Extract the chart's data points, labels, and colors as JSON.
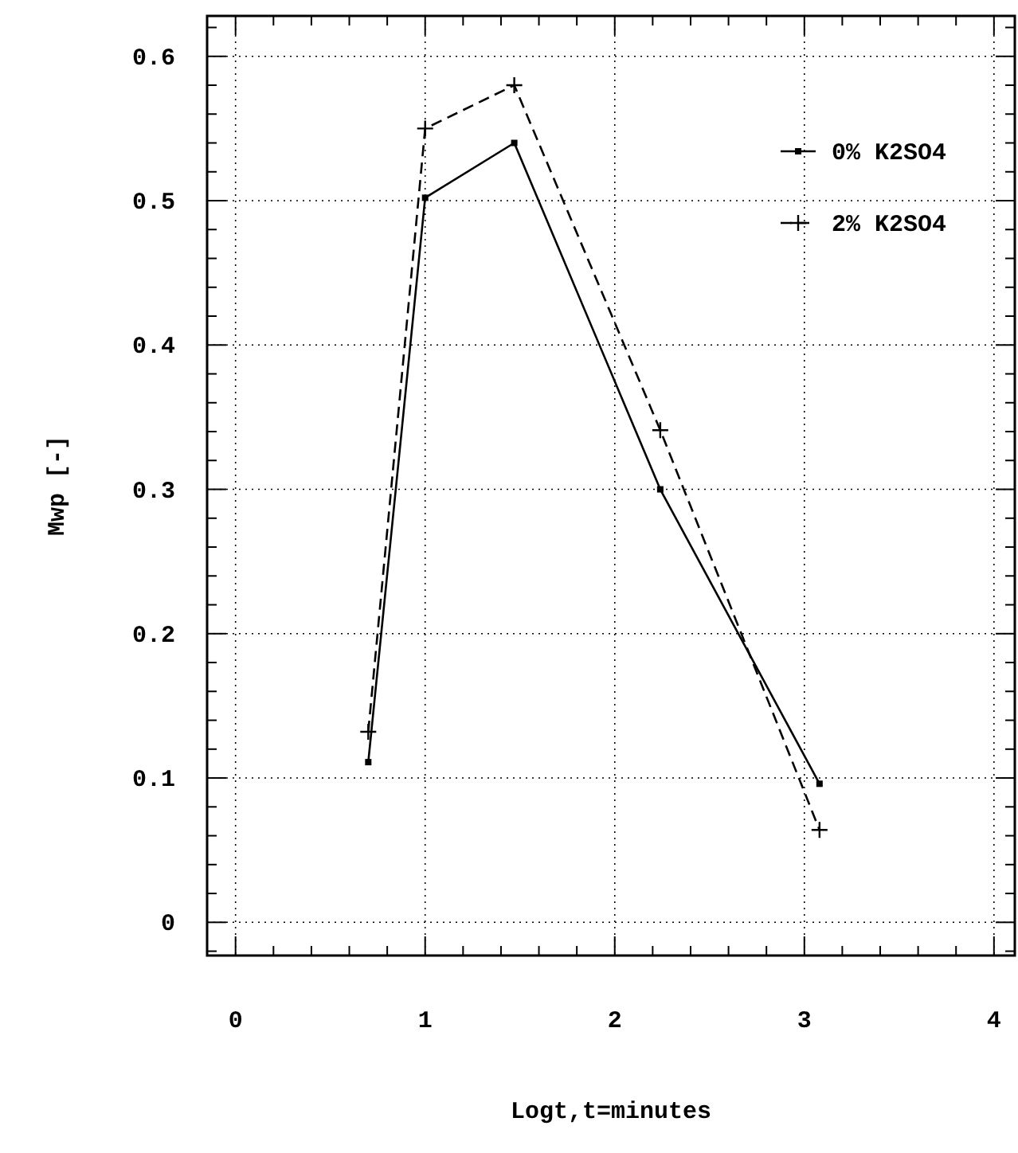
{
  "chart_data": {
    "type": "line",
    "xlabel": "Logt,t=minutes",
    "ylabel": "Mwp [-]",
    "xlim": [
      -0.15,
      4.11
    ],
    "xticks": [
      0,
      1,
      2,
      3,
      4
    ],
    "ylim": [
      -0.023,
      0.628
    ],
    "yticks": [
      0,
      0.1,
      0.2,
      0.3,
      0.4,
      0.5,
      0.6
    ],
    "grid": true,
    "legend": "top right",
    "series": [
      {
        "name": "0% K2SO4",
        "color": "#000000",
        "x": [
          0.7,
          1.0,
          1.47,
          2.24,
          3.08
        ],
        "values": [
          0.111,
          0.502,
          0.54,
          0.3,
          0.096
        ],
        "marker": "square",
        "line_style": "solid"
      },
      {
        "name": "2% K2SO4",
        "color": "#000000",
        "x": [
          0.7,
          1.0,
          1.47,
          2.24,
          3.08
        ],
        "values": [
          0.132,
          0.55,
          0.58,
          0.341,
          0.064
        ],
        "marker": "cross",
        "line_style": "dashed"
      }
    ]
  }
}
